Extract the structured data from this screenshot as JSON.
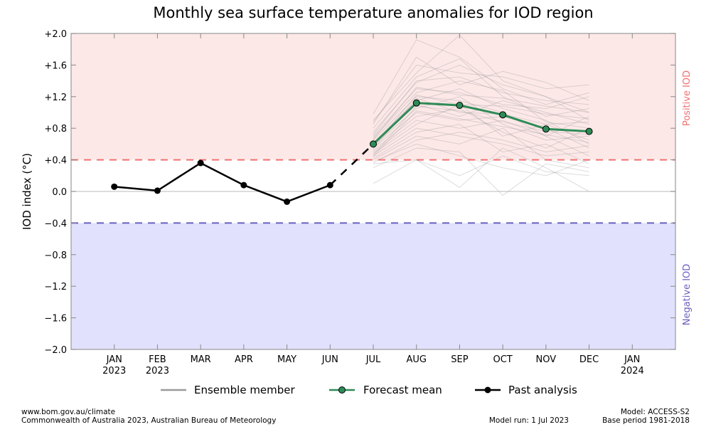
{
  "chart_data": {
    "type": "line",
    "title": "Monthly sea surface temperature anomalies for IOD region",
    "ylabel": "IOD index (°C)",
    "xlabel": "",
    "ylim": [
      -2.0,
      2.0
    ],
    "xlim_month_index": [
      -1,
      13
    ],
    "yticks": [
      {
        "value": 2.0,
        "label": "+2.0"
      },
      {
        "value": 1.6,
        "label": "+1.6"
      },
      {
        "value": 1.2,
        "label": "+1.2"
      },
      {
        "value": 0.8,
        "label": "+0.8"
      },
      {
        "value": 0.4,
        "label": "+0.4"
      },
      {
        "value": 0.0,
        "label": "0.0"
      },
      {
        "value": -0.4,
        "label": "−0.4"
      },
      {
        "value": -0.8,
        "label": "−0.8"
      },
      {
        "value": -1.2,
        "label": "−1.2"
      },
      {
        "value": -1.6,
        "label": "−1.6"
      },
      {
        "value": -2.0,
        "label": "−2.0"
      }
    ],
    "xticks": [
      {
        "index": 0,
        "label": "JAN",
        "sub": "2023"
      },
      {
        "index": 1,
        "label": "FEB",
        "sub": "2023"
      },
      {
        "index": 2,
        "label": "MAR",
        "sub": ""
      },
      {
        "index": 3,
        "label": "APR",
        "sub": ""
      },
      {
        "index": 4,
        "label": "MAY",
        "sub": ""
      },
      {
        "index": 5,
        "label": "JUN",
        "sub": ""
      },
      {
        "index": 6,
        "label": "JUL",
        "sub": ""
      },
      {
        "index": 7,
        "label": "AUG",
        "sub": ""
      },
      {
        "index": 8,
        "label": "SEP",
        "sub": ""
      },
      {
        "index": 9,
        "label": "OCT",
        "sub": ""
      },
      {
        "index": 10,
        "label": "NOV",
        "sub": ""
      },
      {
        "index": 11,
        "label": "DEC",
        "sub": ""
      },
      {
        "index": 12,
        "label": "JAN",
        "sub": "2024"
      }
    ],
    "thresholds": {
      "positive": 0.4,
      "negative": -0.4
    },
    "regions": {
      "positive_label": "Positive IOD",
      "negative_label": "Negative IOD"
    },
    "colors": {
      "positive_fill": "#fde8e8",
      "negative_fill": "#e1e1fe",
      "positive_line": "#f07070",
      "negative_line": "#6a5fbf",
      "forecast": "#2e8b57",
      "past": "#000000",
      "ensemble": "#9a9a9a"
    },
    "past_analysis": {
      "name": "Past analysis",
      "months": [
        "JAN",
        "FEB",
        "MAR",
        "APR",
        "MAY",
        "JUN"
      ],
      "values": [
        0.06,
        0.01,
        0.36,
        0.08,
        -0.13,
        0.08
      ]
    },
    "forecast_mean": {
      "name": "Forecast mean",
      "months": [
        "JUL",
        "AUG",
        "SEP",
        "OCT",
        "NOV",
        "DEC"
      ],
      "values": [
        0.6,
        1.12,
        1.09,
        0.97,
        0.79,
        0.76
      ]
    },
    "ensemble": {
      "name": "Ensemble member",
      "months": [
        "JUL",
        "AUG",
        "SEP",
        "OCT",
        "NOV",
        "DEC"
      ],
      "members": [
        [
          0.98,
          1.92,
          1.7,
          1.3,
          1.1,
          1.25
        ],
        [
          0.9,
          1.5,
          1.98,
          1.4,
          1.2,
          1.0
        ],
        [
          0.85,
          1.7,
          1.35,
          1.52,
          1.38,
          1.15
        ],
        [
          0.8,
          1.45,
          1.68,
          1.2,
          0.95,
          1.05
        ],
        [
          0.75,
          1.38,
          1.6,
          1.35,
          1.2,
          0.9
        ],
        [
          0.7,
          1.3,
          1.25,
          1.1,
          1.05,
          1.2
        ],
        [
          0.68,
          1.25,
          1.4,
          1.28,
          0.88,
          0.8
        ],
        [
          0.65,
          1.2,
          1.15,
          1.0,
          0.7,
          0.95
        ],
        [
          0.62,
          1.15,
          1.3,
          1.05,
          0.9,
          0.6
        ],
        [
          0.6,
          1.1,
          0.95,
          1.15,
          1.0,
          0.85
        ],
        [
          0.58,
          1.05,
          1.2,
          0.85,
          0.65,
          0.7
        ],
        [
          0.55,
          1.0,
          0.9,
          0.95,
          0.8,
          0.55
        ],
        [
          0.52,
          0.95,
          1.05,
          0.75,
          0.55,
          0.8
        ],
        [
          0.5,
          0.9,
          0.8,
          0.9,
          0.7,
          0.45
        ],
        [
          0.48,
          0.85,
          1.1,
          0.7,
          0.85,
          0.65
        ],
        [
          0.45,
          0.8,
          0.7,
          0.6,
          0.45,
          0.5
        ],
        [
          0.42,
          0.75,
          0.85,
          0.5,
          0.6,
          0.35
        ],
        [
          0.4,
          0.7,
          0.6,
          0.8,
          0.4,
          0.3
        ],
        [
          0.38,
          0.6,
          0.45,
          0.3,
          0.2,
          0.4
        ],
        [
          0.35,
          0.4,
          0.2,
          0.45,
          0.25,
          0.2
        ],
        [
          0.1,
          0.4,
          0.05,
          0.55,
          0.3,
          0.0
        ],
        [
          0.3,
          0.55,
          0.5,
          -0.05,
          0.35,
          0.25
        ],
        [
          0.72,
          1.4,
          1.45,
          1.25,
          1.15,
          1.1
        ],
        [
          0.66,
          1.32,
          1.22,
          1.18,
          1.08,
          1.0
        ],
        [
          0.57,
          1.22,
          1.1,
          1.08,
          0.98,
          0.92
        ],
        [
          0.54,
          1.18,
          1.0,
          0.98,
          0.85,
          0.88
        ],
        [
          0.46,
          1.08,
          1.02,
          0.88,
          0.76,
          0.72
        ],
        [
          0.44,
          1.02,
          0.92,
          0.82,
          0.72,
          0.62
        ],
        [
          0.88,
          1.6,
          1.5,
          1.45,
          1.3,
          1.35
        ],
        [
          0.36,
          0.65,
          0.75,
          0.65,
          0.5,
          0.58
        ]
      ]
    },
    "legend": {
      "placement": "bottom",
      "entries": [
        "Ensemble member",
        "Forecast mean",
        "Past analysis"
      ]
    }
  },
  "footer": {
    "url": "www.bom.gov.au/climate",
    "copyright": "Commonwealth of Australia 2023, Australian Bureau of Meteorology",
    "model_run": "Model run: 1 Jul 2023",
    "model": "Model: ACCESS-S2",
    "base_period": "Base period 1981-2018"
  }
}
